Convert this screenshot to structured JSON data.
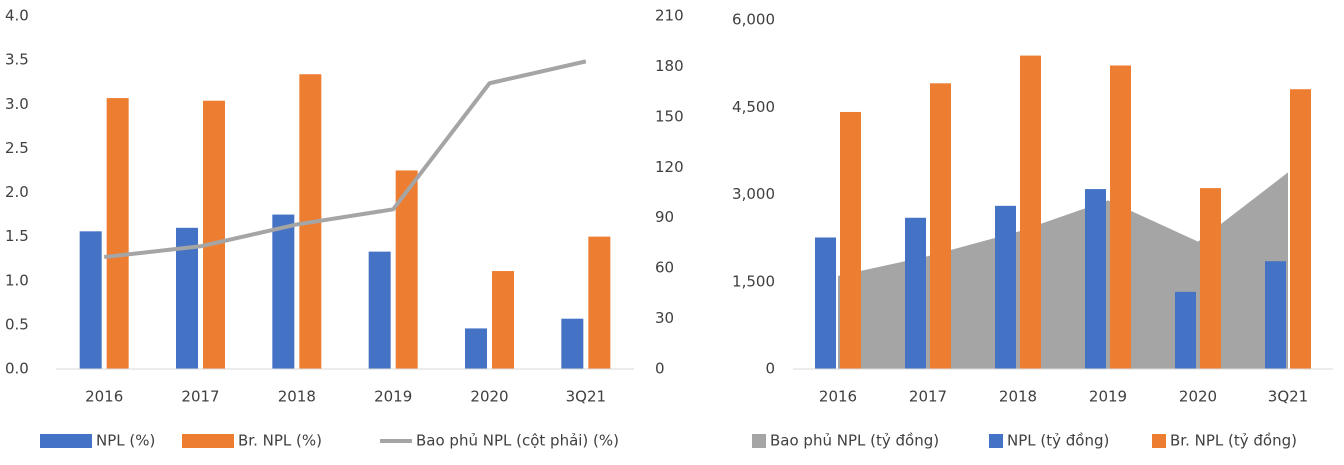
{
  "chart_data": [
    {
      "type": "bar",
      "categories": [
        "2016",
        "2017",
        "2018",
        "2019",
        "2020",
        "3Q21"
      ],
      "series": [
        {
          "name": "NPL (%)",
          "color": "#4472c4",
          "values": [
            1.56,
            1.6,
            1.75,
            1.33,
            0.46,
            0.57
          ]
        },
        {
          "name": "Br. NPL (%)",
          "color": "#ed7d31",
          "values": [
            3.07,
            3.04,
            3.34,
            2.25,
            1.11,
            1.5
          ]
        },
        {
          "name": "Bao phủ NPL (cột phải) (%)",
          "color": "#a5a5a5",
          "type": "line",
          "axis": "y2",
          "values": [
            66.6,
            73,
            86,
            95,
            170,
            183
          ]
        }
      ],
      "ylim": [
        0,
        4
      ],
      "yticks": [
        {
          "value": 0,
          "label": "0.0"
        },
        0.5,
        {
          "value": 1,
          "label": "1.0"
        },
        1.5,
        {
          "value": 2,
          "label": "2.0"
        },
        2.5,
        {
          "value": 3,
          "label": "3.0"
        },
        3.5,
        {
          "value": 4,
          "label": "4.0"
        }
      ],
      "y2lim": [
        0,
        210
      ],
      "y2ticks": [
        0,
        30,
        60,
        90,
        120,
        150,
        180,
        210
      ],
      "legend": "bottom"
    },
    {
      "type": "bar",
      "categories": [
        "2016",
        "2017",
        "2018",
        "2019",
        "2020",
        "3Q21"
      ],
      "series": [
        {
          "name": "Bao phủ NPL (tỷ đồng)",
          "color": "#a5a5a5",
          "type": "area",
          "values": [
            1600,
            1940,
            2360,
            2900,
            2190,
            3380
          ]
        },
        {
          "name": "NPL (tỷ đồng)",
          "color": "#4472c4",
          "values": [
            2261,
            2600,
            2805,
            3093,
            1326,
            1853
          ]
        },
        {
          "name": "Br. NPL (tỷ đồng)",
          "color": "#ed7d31",
          "values": [
            4419,
            4912,
            5388,
            5218,
            3110,
            4810
          ]
        }
      ],
      "ylim": [
        0,
        6000
      ],
      "yticks": [
        0,
        {
          "value": 1500,
          "label": "1,500"
        },
        {
          "value": 3000,
          "label": "3,000"
        },
        {
          "value": 4500,
          "label": "4,500"
        },
        {
          "value": 6000,
          "label": "6,000"
        }
      ],
      "legend": "bottom"
    }
  ]
}
